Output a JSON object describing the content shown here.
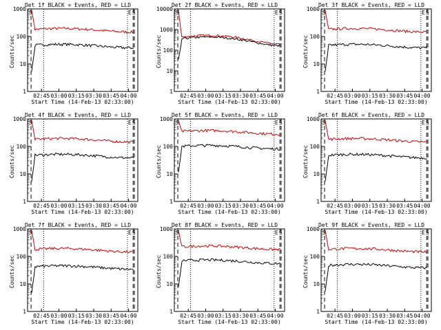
{
  "chart_data": [
    {
      "type": "line",
      "title": "Det 1f BLACK = Events, RED = LLD",
      "xlabel": "Start Time (14-Feb-13 02:33:00)",
      "ylabel": "Counts/sec",
      "ylim": [
        1,
        1000
      ],
      "yscale": "log",
      "y_ticks": [
        "1",
        "10",
        "100",
        "1000"
      ],
      "x_ticks": [
        "02:45",
        "03:00",
        "03:15",
        "03:30",
        "03:45",
        "04:00"
      ],
      "markers": [
        "S",
        "E",
        "S"
      ],
      "events_level": 45,
      "lld_level": 170
    },
    {
      "type": "line",
      "title": "Det 2f BLACK = Events, RED = LLD",
      "xlabel": "Start Time (14-Feb-13 02:33:00)",
      "ylabel": "Counts/sec",
      "ylim": [
        1,
        10000
      ],
      "yscale": "log",
      "y_ticks": [
        "1",
        "10",
        "100",
        "1000",
        "10000"
      ],
      "x_ticks": [
        "02:45",
        "03:00",
        "03:15",
        "03:30",
        "03:45",
        "04:00"
      ],
      "markers": [
        "S",
        "E",
        "S"
      ],
      "events_level": 300,
      "lld_level": 360
    },
    {
      "type": "line",
      "title": "Det 3f BLACK = Events, RED = LLD",
      "xlabel": "Start Time (14-Feb-13 02:33:00)",
      "ylabel": "Counts/sec",
      "ylim": [
        1,
        1000
      ],
      "yscale": "log",
      "y_ticks": [
        "1",
        "10",
        "100",
        "1000"
      ],
      "x_ticks": [
        "02:45",
        "03:00",
        "03:15",
        "03:30",
        "03:45",
        "04:00"
      ],
      "markers": [
        "S",
        "E",
        "S"
      ],
      "events_level": 45,
      "lld_level": 170
    },
    {
      "type": "line",
      "title": "Det 4f BLACK = Events, RED = LLD",
      "xlabel": "Start Time (14-Feb-13 02:33:00)",
      "ylabel": "Counts/sec",
      "ylim": [
        1,
        1000
      ],
      "yscale": "log",
      "y_ticks": [
        "1",
        "10",
        "100",
        "1000"
      ],
      "x_ticks": [
        "02:45",
        "03:00",
        "03:15",
        "03:30",
        "03:45",
        "04:00"
      ],
      "markers": [
        "S",
        "E",
        "S"
      ],
      "events_level": 45,
      "lld_level": 170
    },
    {
      "type": "line",
      "title": "Det 5f BLACK = Events, RED = LLD",
      "xlabel": "Start Time (14-Feb-13 02:33:00)",
      "ylabel": "Counts/sec",
      "ylim": [
        1,
        1000
      ],
      "yscale": "log",
      "y_ticks": [
        "1",
        "10",
        "100",
        "1000"
      ],
      "x_ticks": [
        "02:45",
        "03:00",
        "03:15",
        "03:30",
        "03:45",
        "04:00"
      ],
      "markers": [
        "S",
        "E",
        "S"
      ],
      "events_level": 95,
      "lld_level": 330
    },
    {
      "type": "line",
      "title": "Det 6f BLACK = Events, RED = LLD",
      "xlabel": "Start Time (14-Feb-13 02:33:00)",
      "ylabel": "Counts/sec",
      "ylim": [
        1,
        1000
      ],
      "yscale": "log",
      "y_ticks": [
        "1",
        "10",
        "100",
        "1000"
      ],
      "x_ticks": [
        "02:45",
        "03:00",
        "03:15",
        "03:30",
        "03:45",
        "04:00"
      ],
      "markers": [
        "S",
        "E",
        "S"
      ],
      "events_level": 45,
      "lld_level": 170
    },
    {
      "type": "line",
      "title": "Det 7f BLACK = Events, RED = LLD",
      "xlabel": "Start Time (14-Feb-13 02:33:00)",
      "ylabel": "Counts/sec",
      "ylim": [
        1,
        1000
      ],
      "yscale": "log",
      "y_ticks": [
        "1",
        "10",
        "100",
        "1000"
      ],
      "x_ticks": [
        "02:45",
        "03:00",
        "03:15",
        "03:30",
        "03:45",
        "04:00"
      ],
      "markers": [
        "S",
        "E",
        "S"
      ],
      "events_level": 40,
      "lld_level": 170
    },
    {
      "type": "line",
      "title": "Det 8f BLACK = Events, RED = LLD",
      "xlabel": "Start Time (14-Feb-13 02:33:00)",
      "ylabel": "Counts/sec",
      "ylim": [
        1,
        1000
      ],
      "yscale": "log",
      "y_ticks": [
        "1",
        "10",
        "100",
        "1000"
      ],
      "x_ticks": [
        "02:45",
        "03:00",
        "03:15",
        "03:30",
        "03:45",
        "04:00"
      ],
      "markers": [
        "S",
        "E",
        "S"
      ],
      "events_level": 65,
      "lld_level": 210
    },
    {
      "type": "line",
      "title": "Det 9f BLACK = Events, RED = LLD",
      "xlabel": "Start Time (14-Feb-13 02:33:00)",
      "ylabel": "Counts/sec",
      "ylim": [
        1,
        1000
      ],
      "yscale": "log",
      "y_ticks": [
        "1",
        "10",
        "100",
        "1000"
      ],
      "x_ticks": [
        "02:45",
        "03:00",
        "03:15",
        "03:30",
        "03:45",
        "04:00"
      ],
      "markers": [
        "S",
        "E",
        "S"
      ],
      "events_level": 45,
      "lld_level": 170
    }
  ],
  "colors": {
    "events": "#000000",
    "lld": "#cc0000"
  }
}
